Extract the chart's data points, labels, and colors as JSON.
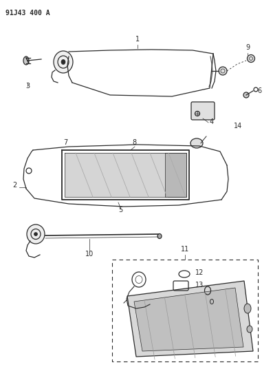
{
  "title_label": "91J43 400 A",
  "bg": "#ffffff",
  "lc": "#2a2a2a",
  "lc_gray": "#888888",
  "figsize": [
    3.97,
    5.33
  ],
  "dpi": 100
}
